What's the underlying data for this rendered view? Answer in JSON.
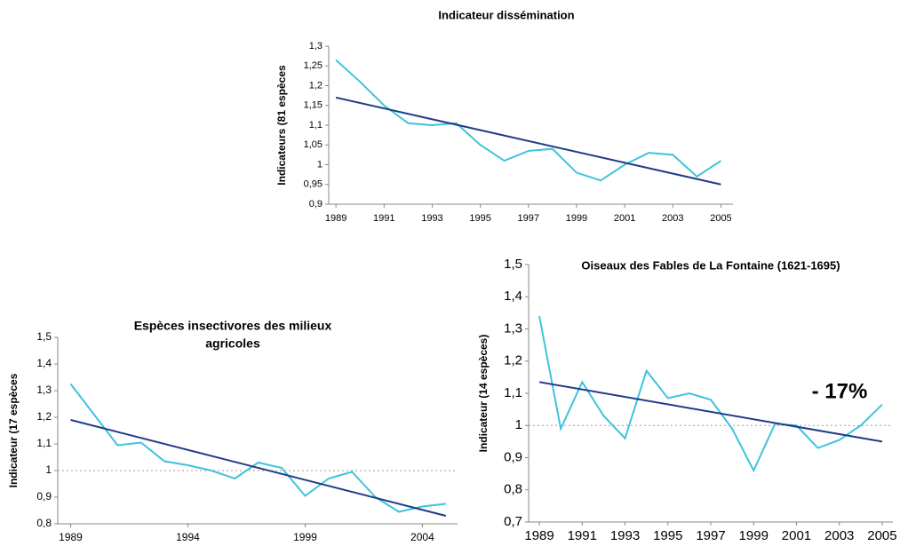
{
  "chart_data": [
    {
      "type": "line",
      "title": [
        "Indicateur dissémination"
      ],
      "ylabel": "Indicateurs (81 espèces",
      "x": [
        1989,
        1990,
        1991,
        1992,
        1993,
        1994,
        1995,
        1996,
        1997,
        1998,
        1999,
        2000,
        2001,
        2002,
        2003,
        2004,
        2005
      ],
      "series": [
        {
          "color": "#3ec3dc",
          "values": [
            1.265,
            1.21,
            1.15,
            1.105,
            1.1,
            1.105,
            1.05,
            1.01,
            1.035,
            1.04,
            0.98,
            0.96,
            1.0,
            1.03,
            1.025,
            0.97,
            1.01
          ]
        },
        {
          "color": "#1f3c88",
          "x": [
            1989,
            2005
          ],
          "values": [
            1.17,
            0.95
          ]
        }
      ],
      "xlim": [
        1988.7,
        2005.5
      ],
      "xticks": [
        1989,
        1991,
        1993,
        1995,
        1997,
        1999,
        2001,
        2003,
        2005
      ],
      "ylim": [
        0.9,
        1.3
      ],
      "yticks": [
        {
          "value": 0.9,
          "label": "0,9"
        },
        {
          "value": 0.95,
          "label": "0,95"
        },
        1,
        {
          "value": 1.05,
          "label": "1,05"
        },
        {
          "value": 1.1,
          "label": "1,1"
        },
        {
          "value": 1.15,
          "label": "1,15"
        },
        {
          "value": 1.2,
          "label": "1,2"
        },
        {
          "value": 1.25,
          "label": "1,25"
        },
        {
          "value": 1.3,
          "label": "1,3"
        }
      ]
    },
    {
      "type": "line",
      "title": [
        "Espèces insectivores des milieux",
        "agricoles"
      ],
      "ylabel": "Indicateur (17 espèces",
      "x": [
        1989,
        1990,
        1991,
        1992,
        1993,
        1994,
        1995,
        1996,
        1997,
        1998,
        1999,
        2000,
        2001,
        2002,
        2003,
        2004,
        2005
      ],
      "series": [
        {
          "color": "#3ec3dc",
          "values": [
            1.325,
            1.21,
            1.095,
            1.105,
            1.035,
            1.02,
            1.0,
            0.97,
            1.03,
            1.01,
            0.905,
            0.97,
            0.995,
            0.9,
            0.845,
            0.865,
            0.875
          ]
        },
        {
          "color": "#1f3c88",
          "x": [
            1989,
            2005
          ],
          "values": [
            1.19,
            0.83
          ]
        }
      ],
      "xlim": [
        1988.45,
        2005.5
      ],
      "xticks": [
        1989,
        1994,
        1999,
        2004
      ],
      "ylim": [
        0.8,
        1.5
      ],
      "yticks": [
        {
          "value": 0.8,
          "label": "0,8"
        },
        {
          "value": 0.9,
          "label": "0,9"
        },
        1,
        {
          "value": 1.1,
          "label": "1,1"
        },
        {
          "value": 1.2,
          "label": "1,2"
        },
        {
          "value": 1.3,
          "label": "1,3"
        },
        {
          "value": 1.4,
          "label": "1,4"
        },
        {
          "value": 1.5,
          "label": "1,5"
        }
      ],
      "refline": 1
    },
    {
      "type": "line",
      "title": [
        "Oiseaux des Fables de La Fontaine (1621-1695)"
      ],
      "ylabel": "Indicateur (14 espèces)",
      "x": [
        1989,
        1990,
        1991,
        1992,
        1993,
        1994,
        1995,
        1996,
        1997,
        1998,
        1999,
        2000,
        2001,
        2002,
        2003,
        2004,
        2005
      ],
      "series": [
        {
          "color": "#3ec3dc",
          "values": [
            1.34,
            0.99,
            1.135,
            1.03,
            0.96,
            1.17,
            1.085,
            1.1,
            1.08,
            0.99,
            0.86,
            1.005,
            1.0,
            0.93,
            0.955,
            1.0,
            1.065
          ]
        },
        {
          "color": "#1f3c88",
          "x": [
            1989,
            2005
          ],
          "values": [
            1.135,
            0.95
          ]
        }
      ],
      "xlim": [
        1988.5,
        2005.5
      ],
      "xticks": [
        1989,
        1991,
        1993,
        1995,
        1997,
        1999,
        2001,
        2003,
        2005
      ],
      "ylim": [
        0.7,
        1.5
      ],
      "yticks": [
        {
          "value": 0.7,
          "label": "0,7"
        },
        {
          "value": 0.8,
          "label": "0,8"
        },
        {
          "value": 0.9,
          "label": "0,9"
        },
        1,
        {
          "value": 1.1,
          "label": "1,1"
        },
        {
          "value": 1.2,
          "label": "1,2"
        },
        {
          "value": 1.3,
          "label": "1,3"
        },
        {
          "value": 1.4,
          "label": "1,4"
        },
        {
          "value": 1.5,
          "label": "1,5"
        }
      ],
      "refline": 1,
      "annotation": "- 17%"
    }
  ]
}
